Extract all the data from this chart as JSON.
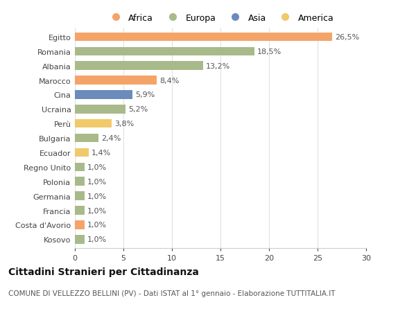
{
  "categories": [
    "Egitto",
    "Romania",
    "Albania",
    "Marocco",
    "Cina",
    "Ucraina",
    "Perù",
    "Bulgaria",
    "Ecuador",
    "Regno Unito",
    "Polonia",
    "Germania",
    "Francia",
    "Costa d'Avorio",
    "Kosovo"
  ],
  "values": [
    26.5,
    18.5,
    13.2,
    8.4,
    5.9,
    5.2,
    3.8,
    2.4,
    1.4,
    1.0,
    1.0,
    1.0,
    1.0,
    1.0,
    1.0
  ],
  "labels": [
    "26,5%",
    "18,5%",
    "13,2%",
    "8,4%",
    "5,9%",
    "5,2%",
    "3,8%",
    "2,4%",
    "1,4%",
    "1,0%",
    "1,0%",
    "1,0%",
    "1,0%",
    "1,0%",
    "1,0%"
  ],
  "continents": [
    "Africa",
    "Europa",
    "Europa",
    "Africa",
    "Asia",
    "Europa",
    "America",
    "Europa",
    "America",
    "Europa",
    "Europa",
    "Europa",
    "Europa",
    "Africa",
    "Europa"
  ],
  "colors": {
    "Africa": "#F4A468",
    "Europa": "#A8BA8A",
    "Asia": "#6B8BBD",
    "America": "#F0C96B"
  },
  "legend_order": [
    "Africa",
    "Europa",
    "Asia",
    "America"
  ],
  "title": "Cittadini Stranieri per Cittadinanza",
  "subtitle": "COMUNE DI VELLEZZO BELLINI (PV) - Dati ISTAT al 1° gennaio - Elaborazione TUTTITALIA.IT",
  "xlim": [
    0,
    30
  ],
  "xticks": [
    0,
    5,
    10,
    15,
    20,
    25,
    30
  ],
  "background_color": "#ffffff",
  "grid_color": "#e0e0e0",
  "bar_height": 0.6,
  "label_fontsize": 8,
  "tick_fontsize": 8,
  "title_fontsize": 10,
  "subtitle_fontsize": 7.5
}
